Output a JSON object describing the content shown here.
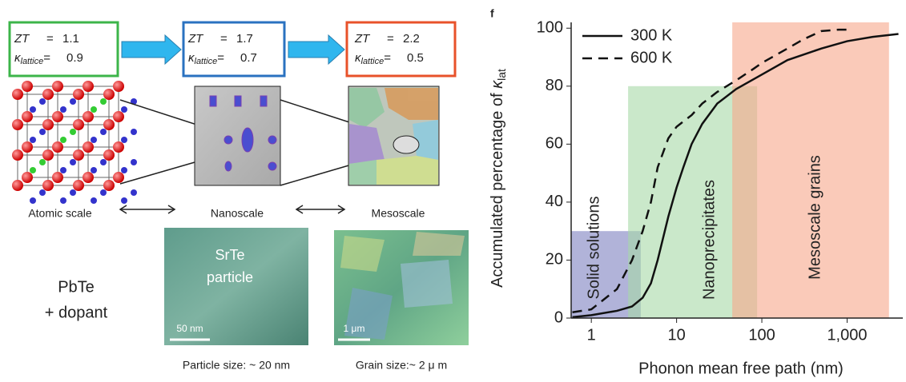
{
  "diagram": {
    "equals": "=",
    "boxes": [
      {
        "zt_label": "ZT",
        "zt": 1.1,
        "kappa_label": "κ",
        "kappa_sub": "lattice",
        "kappa": 0.9
      },
      {
        "zt_label": "ZT",
        "zt": 1.7,
        "kappa_label": "κ",
        "kappa_sub": "lattice",
        "kappa": 0.7
      },
      {
        "zt_label": "ZT",
        "zt": 2.2,
        "kappa_label": "κ",
        "kappa_sub": "lattice",
        "kappa": 0.5
      }
    ],
    "scales": [
      "Atomic scale",
      "Nanoscale",
      "Mesoscale"
    ],
    "material": [
      "PbTe",
      "+ dopant"
    ],
    "photo1": {
      "label": [
        "SrTe",
        "particle"
      ],
      "scale_bar": "50 nm",
      "caption": "Particle size: ~ 20 nm"
    },
    "photo2": {
      "scale_bar": "1 μm",
      "caption": "Grain size:~ 2 μ m"
    }
  },
  "chart_data": {
    "type": "line",
    "panel_label": "f",
    "xlabel": "Phonon mean free path (nm)",
    "ylabel": "Accumulated percentage of ",
    "ylabel_symbol": "κ",
    "ylabel_sub": "lat",
    "xscale": "log",
    "xlim": [
      0.58,
      4500
    ],
    "ylim": [
      0,
      102
    ],
    "xticks": [
      1,
      10,
      100,
      {
        "value": 1000,
        "label": "1,000"
      }
    ],
    "yticks": [
      0,
      20,
      40,
      60,
      80,
      100
    ],
    "legend": "upper left",
    "regions": [
      {
        "name": "Solid solutions",
        "color": "#7d80c0",
        "x": [
          0.58,
          3.8
        ],
        "y": [
          0,
          30
        ]
      },
      {
        "name": "Nanoprecipitates",
        "color": "#a6d9a6",
        "x": [
          2.7,
          88
        ],
        "y": [
          0,
          80
        ]
      },
      {
        "name": "Mesoscale grains",
        "color": "#f7a68a",
        "x": [
          45,
          3100
        ],
        "y": [
          0,
          102
        ]
      }
    ],
    "series": [
      {
        "name": "300 K",
        "color": "#111111",
        "dash": "solid",
        "x": [
          0.6,
          1,
          2,
          3,
          4,
          5,
          6,
          8,
          10,
          12,
          15,
          20,
          30,
          50,
          100,
          200,
          500,
          1000,
          2000,
          4000
        ],
        "values": [
          0.3,
          1,
          2.5,
          4,
          7,
          12,
          20,
          35,
          45,
          52,
          60,
          67,
          74,
          79,
          84,
          89,
          93,
          95.5,
          97,
          98
        ]
      },
      {
        "name": "600 K",
        "color": "#111111",
        "dash": "dashed",
        "x": [
          0.6,
          1,
          2,
          3,
          4,
          5,
          6,
          8,
          10,
          15,
          20,
          30,
          50,
          80,
          100,
          200,
          300,
          500,
          800,
          1000
        ],
        "values": [
          2,
          3,
          10,
          20,
          30,
          40,
          52,
          62,
          66,
          70,
          74,
          78,
          82,
          86,
          88,
          93,
          96,
          99,
          99.5,
          99.5
        ]
      }
    ]
  }
}
